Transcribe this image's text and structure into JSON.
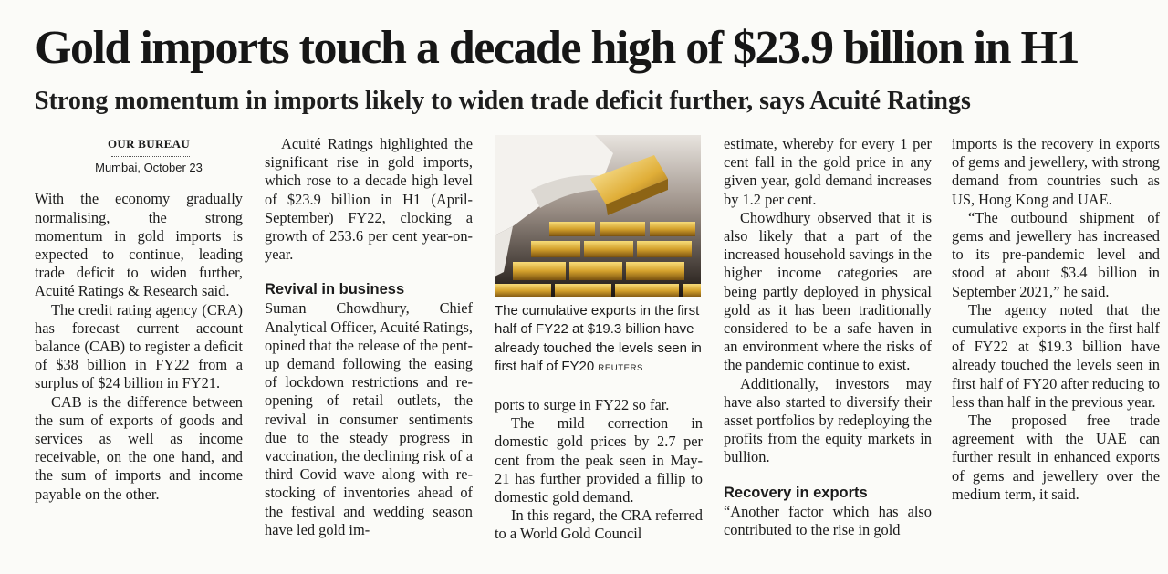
{
  "article": {
    "headline": "Gold imports touch a decade high of $23.9 billion in H1",
    "subheadline": "Strong momentum in imports likely to widen trade deficit further, says Acuité Ratings",
    "byline": "OUR BUREAU",
    "dateline": "Mumbai, October 23",
    "photo": {
      "caption": "The cumulative exports in the first half of FY22 at $19.3 billion have already touched the levels seen in first half of FY20",
      "credit": "REUTERS"
    },
    "col1": {
      "p1": "With the economy gradually normalising, the strong momentum in gold imports is expected to continue, leading trade deficit to widen further, Acuité Ratings & Research said.",
      "p2": "The credit rating agency (CRA) has forecast current account balance (CAB) to register a deficit of $38 billion in FY22 from a surplus of $24 billion in FY21.",
      "p3": "CAB is the difference between the sum of exports of goods and services as well as income receivable, on the one hand, and the sum of imports and income payable on the other."
    },
    "col2": {
      "p1": "Acuité Ratings highlighted the significant rise in gold imports, which rose to a decade high level of $23.9 billion in H1 (April-September) FY22, clocking a growth of 253.6 per cent year-on-year.",
      "subhead": "Revival in business",
      "p2": "Suman Chowdhury, Chief Analytical Officer, Acuité Ratings, opined that the release of the pent-up demand following the easing of lockdown restrictions and re-opening of retail outlets, the revival in consumer sentiments due to the steady progress in vaccination, the declining risk of a third Covid wave along with re-stocking of inventories ahead of the festival and wedding season have led gold im-"
    },
    "col3": {
      "p1": "ports to surge in FY22 so far.",
      "p2": "The mild correction in domestic gold prices by 2.7 per cent from the peak seen in May-21 has further provided a fillip to domestic gold demand.",
      "p3": "In this regard, the CRA referred to a World Gold Council"
    },
    "col4": {
      "p1": "estimate, whereby for every 1 per cent fall in the gold price in any given year, gold demand increases by 1.2 per cent.",
      "p2": "Chowdhury observed that it is also likely that a part of the increased household savings in the higher income categories are being partly deployed in physical gold as it has been traditionally considered to be a safe haven in an environment where the risks of the pandemic continue to exist.",
      "p3": "Additionally, investors may have also started to diversify their asset portfolios by redeploying the profits from the equity markets in bullion.",
      "subhead": "Recovery in exports",
      "p4": "“Another factor which has also contributed to the rise in gold"
    },
    "col5": {
      "p1": "imports is the recovery in exports of gems and jewellery, with strong demand from countries such as US, Hong Kong and UAE.",
      "p2": "“The outbound shipment of gems and jewellery has increased to its pre-pandemic level and stood at about $3.4 billion in September 2021,” he said.",
      "p3": "The agency noted that the cumulative exports in the first half of FY22 at $19.3 billion have already touched the levels seen in first half of FY20 after reducing to less than half in the previous year.",
      "p4": "The proposed free trade agreement with the UAE can further result in enhanced exports of gems and jewellery over the medium term, it said."
    }
  }
}
